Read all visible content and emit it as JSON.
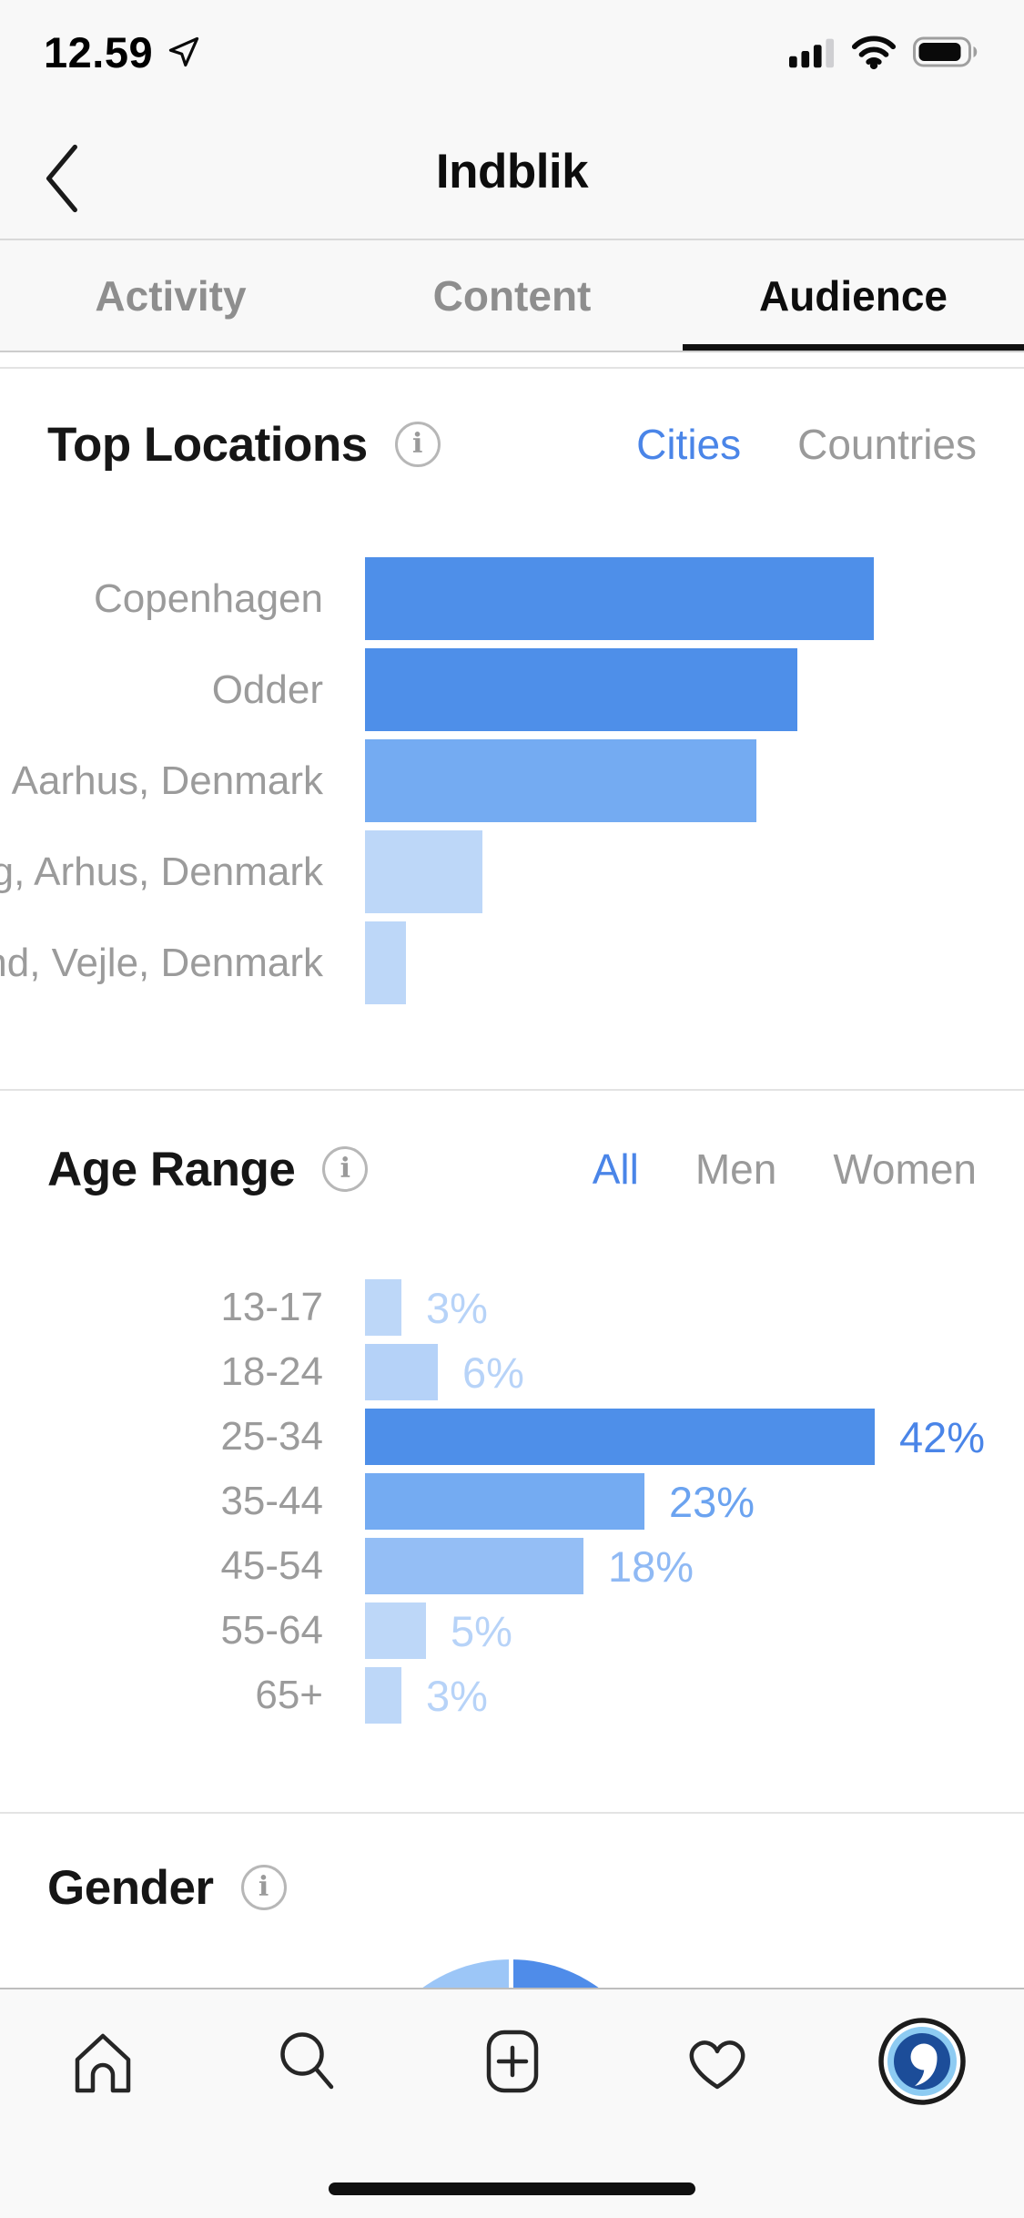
{
  "status_bar": {
    "time": "12.59",
    "icons": [
      "location-arrow-icon",
      "cellular-signal-icon",
      "wifi-icon",
      "battery-icon"
    ]
  },
  "nav_header": {
    "title": "Indblik",
    "back_icon": "chevron-left"
  },
  "tabs": [
    {
      "label": "Activity",
      "active": false
    },
    {
      "label": "Content",
      "active": false
    },
    {
      "label": "Audience",
      "active": true
    }
  ],
  "colors": {
    "accent_blue": "#4a85e8",
    "bar_strong": "#4e8fe9",
    "bar_medium": "#74abf2",
    "bar_soft": "#94bef5",
    "bar_faint": "#bdd7f8",
    "pie_left": "#9cc6f7",
    "pie_right": "#4f8ce9",
    "label_gray": "#9b9b9b"
  },
  "icons": {
    "info": "i"
  },
  "sections": {
    "top_locations": {
      "title": "Top Locations",
      "filters": [
        {
          "label": "Cities",
          "active": true
        },
        {
          "label": "Countries",
          "active": false
        }
      ],
      "chart_data": {
        "type": "bar",
        "orientation": "horizontal",
        "categories": [
          "Copenhagen",
          "Odder",
          "Aarhus, Denmark",
          "g, Arhus, Denmark",
          "nd, Vejle, Denmark"
        ],
        "values_relative_pct_of_max": [
          100,
          85,
          77,
          23,
          8
        ],
        "bar_colors": [
          "#4e8fe9",
          "#4e8fe9",
          "#74abf2",
          "#bdd7f8",
          "#bdd7f8"
        ],
        "value_labels_shown": false
      }
    },
    "age_range": {
      "title": "Age Range",
      "filters": [
        {
          "label": "All",
          "active": true
        },
        {
          "label": "Men",
          "active": false
        },
        {
          "label": "Women",
          "active": false
        }
      ],
      "chart_data": {
        "type": "bar",
        "orientation": "horizontal",
        "categories": [
          "13-17",
          "18-24",
          "25-34",
          "35-44",
          "45-54",
          "55-64",
          "65+"
        ],
        "values": [
          3,
          6,
          42,
          23,
          18,
          5,
          3
        ],
        "value_labels": [
          "3%",
          "6%",
          "42%",
          "23%",
          "18%",
          "5%",
          "3%"
        ],
        "bar_colors": [
          "#bdd7f8",
          "#b5d2f8",
          "#4e8fe9",
          "#74abf2",
          "#94bef5",
          "#bdd7f8",
          "#bdd7f8"
        ],
        "value_label_colors": [
          "#b7d3f8",
          "#b7d3f8",
          "#4a85e8",
          "#6ba3f0",
          "#8fb9f4",
          "#b7d3f8",
          "#b7d3f8"
        ]
      }
    },
    "gender": {
      "title": "Gender",
      "chart_data": {
        "type": "pie",
        "slices": [
          {
            "position": "left-half",
            "value": 50,
            "color": "#9cc6f7"
          },
          {
            "position": "right-half",
            "value": 50,
            "color": "#4f8ce9"
          }
        ],
        "note": "only top of pie visible"
      }
    }
  },
  "bottom_nav": {
    "items": [
      "home",
      "search",
      "add-post",
      "activity-heart",
      "profile-avatar"
    ]
  }
}
